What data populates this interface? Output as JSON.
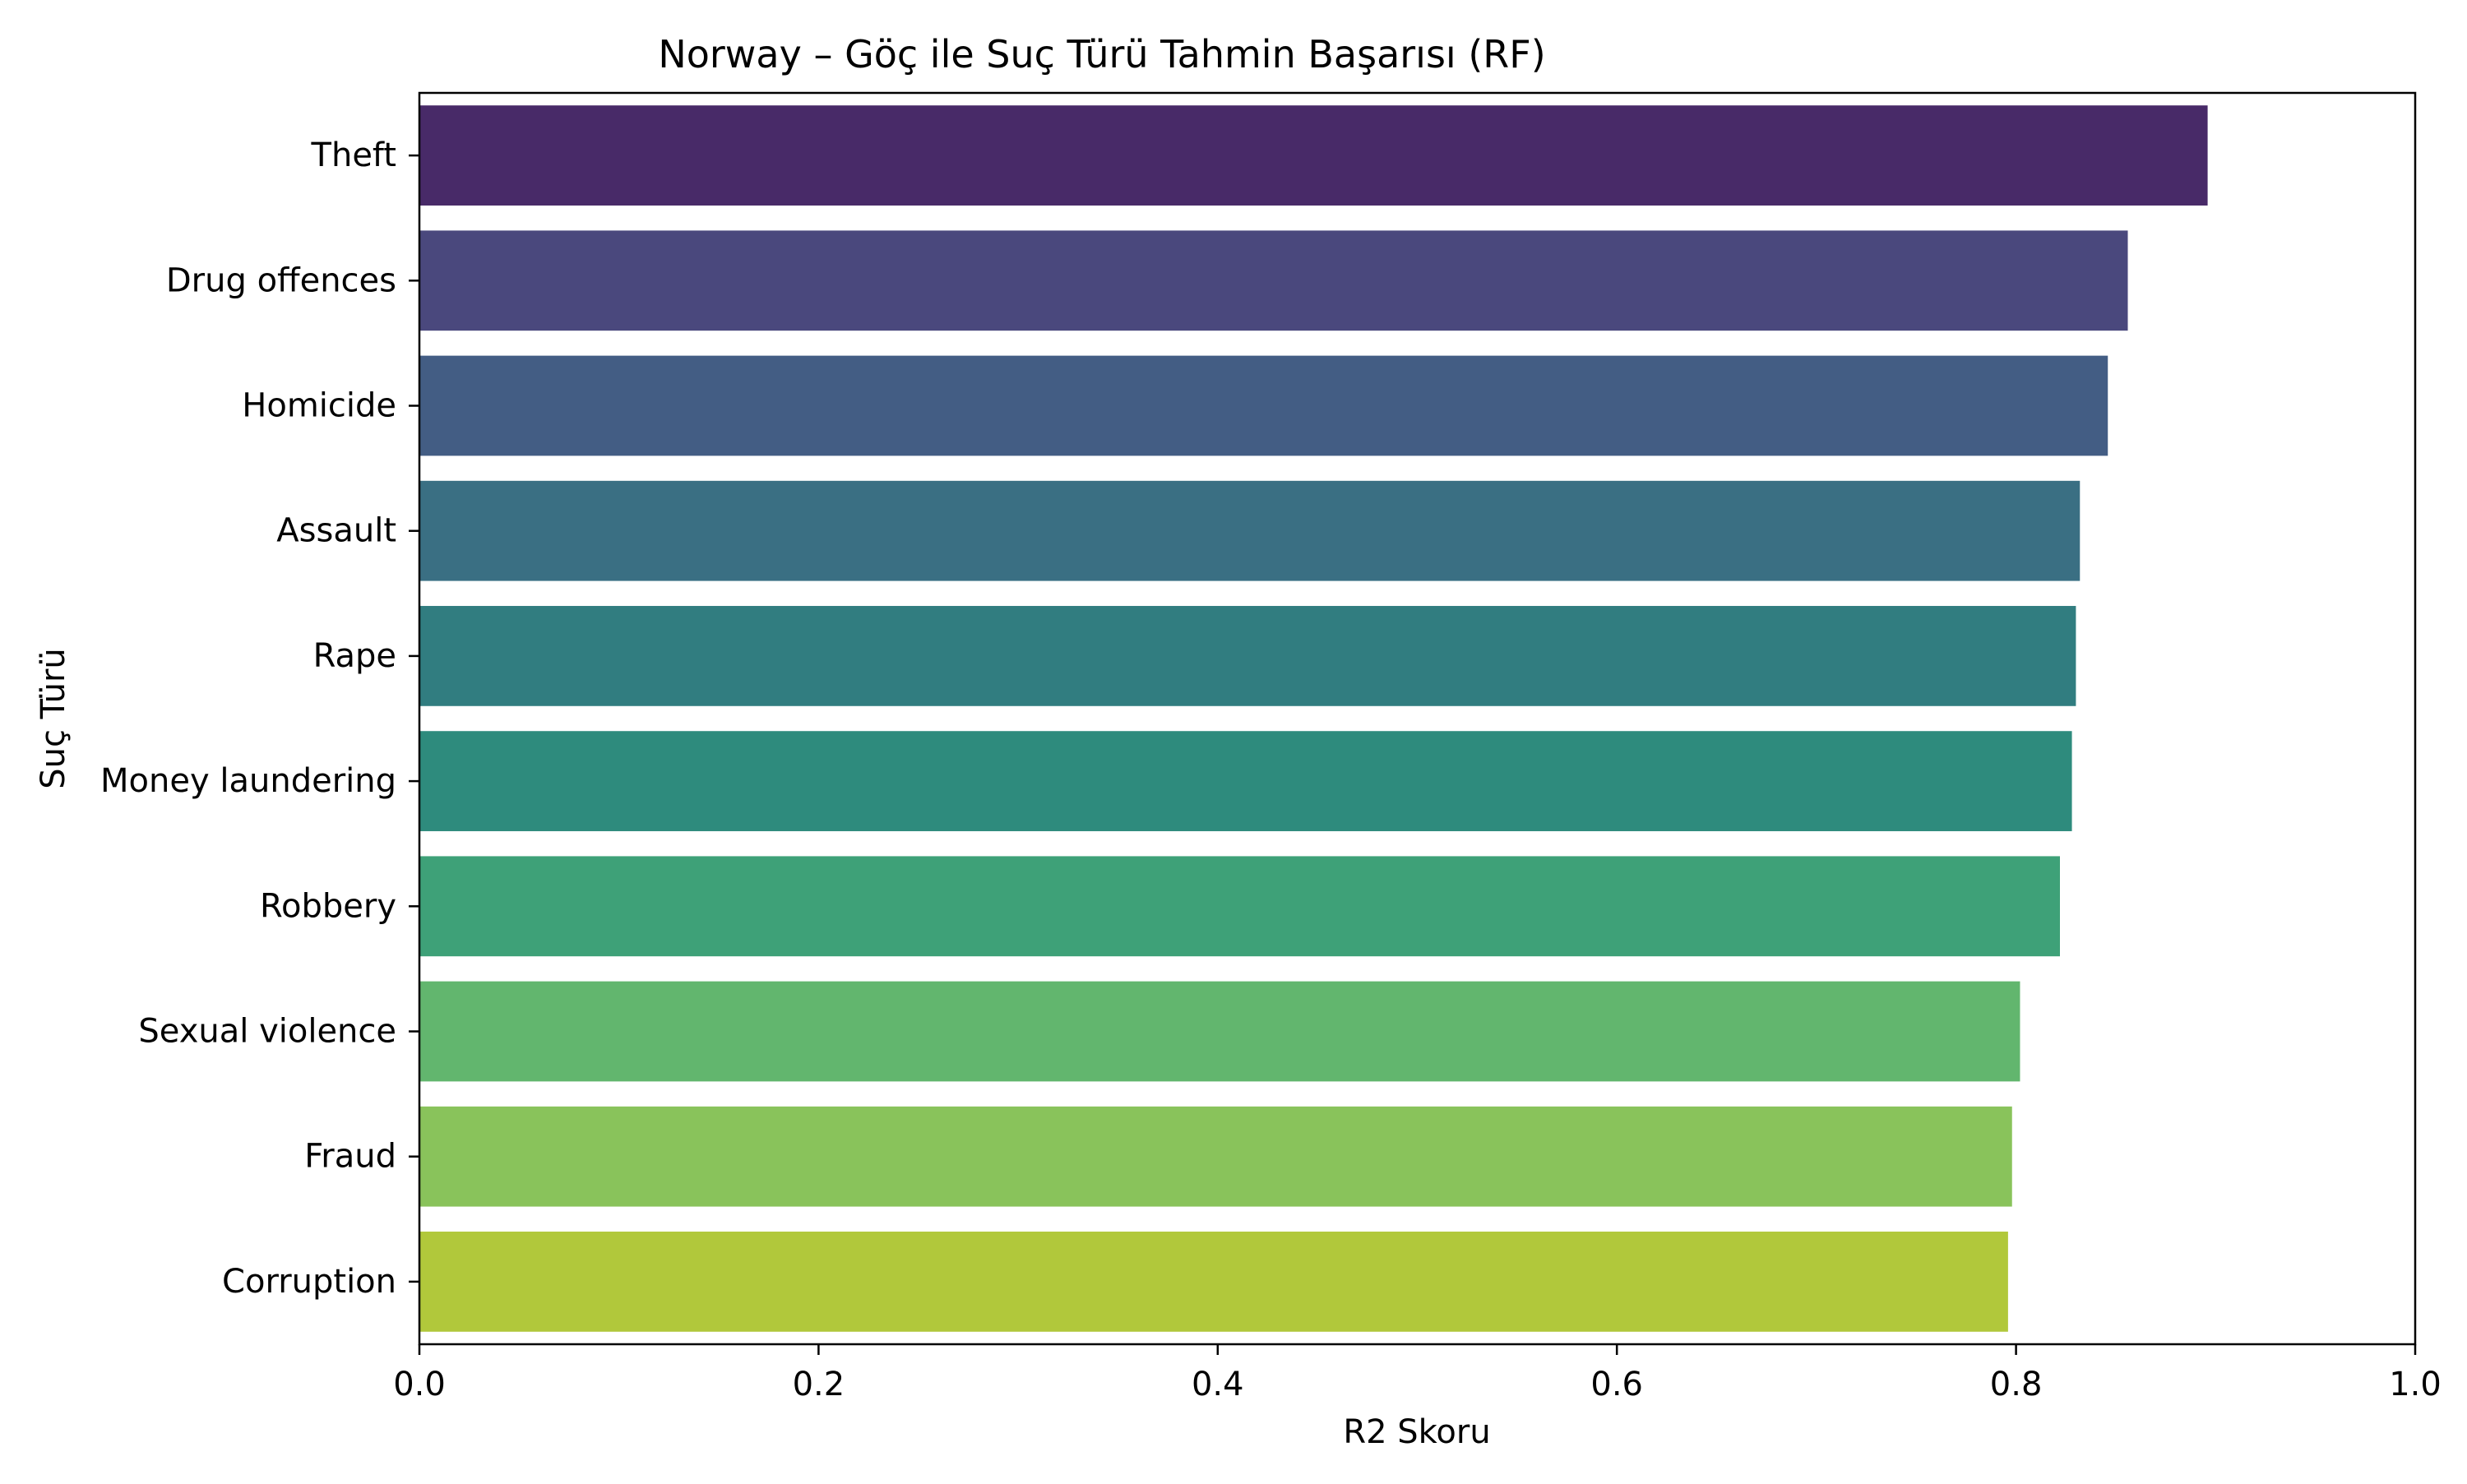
{
  "chart_data": {
    "type": "bar",
    "orientation": "horizontal",
    "title": "Norway – Göç ile Suç Türü Tahmin Başarısı (RF)",
    "xlabel": "R2 Skoru",
    "ylabel": "Suç Türü",
    "xlim": [
      0.0,
      1.0
    ],
    "xticks": [
      "0.0",
      "0.2",
      "0.4",
      "0.6",
      "0.8",
      "1.0"
    ],
    "grid": false,
    "categories": [
      "Theft",
      "Drug offences",
      "Homicide",
      "Assault",
      "Rape",
      "Money laundering",
      "Robbery",
      "Sexual violence",
      "Fraud",
      "Corruption"
    ],
    "values": [
      0.896,
      0.856,
      0.846,
      0.832,
      0.83,
      0.828,
      0.822,
      0.802,
      0.798,
      0.796
    ],
    "colors": [
      "#482a68",
      "#4a487d",
      "#435d84",
      "#3a6f83",
      "#317d80",
      "#2e8b7d",
      "#3ea178",
      "#62b66e",
      "#89c35b",
      "#b1c83b"
    ]
  }
}
